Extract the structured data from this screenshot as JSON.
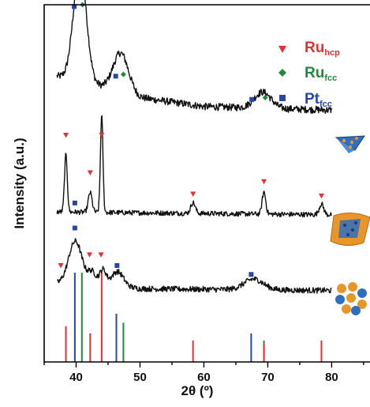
{
  "chart_data": {
    "type": "line",
    "xlabel": "2θ (º)",
    "ylabel": "Intensity (a.u.)",
    "xlim": [
      35,
      86
    ],
    "x_ticks": [
      40,
      50,
      60,
      70,
      80
    ],
    "y_ticks_labeled": false,
    "legend": {
      "placement": "top-right",
      "entries": [
        {
          "main": "Ru",
          "sub": "hcp",
          "color": "#e83030",
          "marker": "triangle-down"
        },
        {
          "main": "Ru",
          "sub": "fcc",
          "color": "#1f8a3a",
          "marker": "diamond"
        },
        {
          "main": "Pt",
          "sub": "fcc",
          "color": "#2a45a8",
          "marker": "square"
        }
      ]
    },
    "series": [
      {
        "offset": 0.68,
        "noise": 0.02,
        "background": [
          [
            37,
            0.12
          ],
          [
            40,
            0.11
          ],
          [
            50,
            0.06
          ],
          [
            60,
            0.035
          ],
          [
            70,
            0.03
          ],
          [
            80,
            0.025
          ]
        ],
        "peaks": [
          [
            40.6,
            0.32,
            1.0
          ],
          [
            47.0,
            0.11,
            1.2
          ],
          [
            69.2,
            0.045,
            1.3
          ]
        ],
        "markers": [
          {
            "phase": "Pt_fcc",
            "x": 39.7,
            "y": 0.995
          },
          {
            "phase": "Ru_fcc",
            "x": 41.0,
            "y": 1.0
          },
          {
            "phase": "Pt_fcc",
            "x": 46.2,
            "y": 0.8
          },
          {
            "phase": "Ru_fcc",
            "x": 47.4,
            "y": 0.805
          },
          {
            "phase": "Pt_fcc",
            "x": 67.5,
            "y": 0.735
          },
          {
            "phase": "Ru_fcc",
            "x": 69.6,
            "y": 0.74
          }
        ]
      },
      {
        "offset": 0.4,
        "noise": 0.014,
        "background": [
          [
            37,
            0.02
          ],
          [
            80,
            0.012
          ]
        ],
        "peaks": [
          [
            38.4,
            0.16,
            0.22
          ],
          [
            42.2,
            0.055,
            0.3
          ],
          [
            44.0,
            0.27,
            0.2
          ],
          [
            58.3,
            0.03,
            0.35
          ],
          [
            69.4,
            0.062,
            0.28
          ],
          [
            78.4,
            0.03,
            0.35
          ]
        ],
        "markers": [
          {
            "phase": "Ru_hcp",
            "x": 38.4,
            "y": 0.635
          },
          {
            "phase": "Pt_fcc",
            "x": 39.8,
            "y": 0.445
          },
          {
            "phase": "Ru_hcp",
            "x": 42.2,
            "y": 0.53
          },
          {
            "phase": "Ru_hcp",
            "x": 44.0,
            "y": 0.635
          },
          {
            "phase": "Ru_hcp",
            "x": 58.3,
            "y": 0.47
          },
          {
            "phase": "Ru_hcp",
            "x": 69.4,
            "y": 0.505
          },
          {
            "phase": "Ru_hcp",
            "x": 78.4,
            "y": 0.465
          }
        ]
      },
      {
        "offset": 0.18,
        "noise": 0.016,
        "background": [
          [
            37,
            0.04
          ],
          [
            39,
            0.05
          ],
          [
            50,
            0.025
          ],
          [
            80,
            0.02
          ]
        ],
        "peaks": [
          [
            39.9,
            0.11,
            1.0
          ],
          [
            42.5,
            0.03,
            0.6
          ],
          [
            44.2,
            0.04,
            0.5
          ],
          [
            46.5,
            0.04,
            0.9
          ],
          [
            67.8,
            0.03,
            1.5
          ]
        ],
        "markers": [
          {
            "phase": "Ru_hcp",
            "x": 37.6,
            "y": 0.27
          },
          {
            "phase": "Pt_fcc",
            "x": 39.8,
            "y": 0.375
          },
          {
            "phase": "Ru_hcp",
            "x": 42.1,
            "y": 0.3
          },
          {
            "phase": "Ru_hcp",
            "x": 43.9,
            "y": 0.3
          },
          {
            "phase": "Pt_fcc",
            "x": 46.4,
            "y": 0.27
          },
          {
            "phase": "Pt_fcc",
            "x": 67.4,
            "y": 0.245
          }
        ]
      }
    ],
    "reference_lines": [
      {
        "phase": "Ru_hcp",
        "x": 38.4,
        "h": 0.1
      },
      {
        "phase": "Pt_fcc",
        "x": 39.8,
        "h": 0.25
      },
      {
        "phase": "Ru_fcc",
        "x": 40.9,
        "h": 0.25
      },
      {
        "phase": "Ru_hcp",
        "x": 42.2,
        "h": 0.08
      },
      {
        "phase": "Ru_hcp",
        "x": 44.0,
        "h": 0.25
      },
      {
        "phase": "Pt_fcc",
        "x": 46.3,
        "h": 0.135
      },
      {
        "phase": "Ru_fcc",
        "x": 47.4,
        "h": 0.11
      },
      {
        "phase": "Ru_hcp",
        "x": 58.3,
        "h": 0.06
      },
      {
        "phase": "Pt_fcc",
        "x": 67.4,
        "h": 0.08
      },
      {
        "phase": "Ru_fcc",
        "x": 69.4,
        "h": 0.06
      },
      {
        "phase": "Ru_hcp",
        "x": 69.4,
        "h": 0.05
      },
      {
        "phase": "Ru_hcp",
        "x": 78.4,
        "h": 0.06
      }
    ],
    "phase_colors": {
      "Ru_hcp": "#e83030",
      "Ru_fcc": "#1f8a3a",
      "Pt_fcc": "#2a45a8"
    }
  }
}
